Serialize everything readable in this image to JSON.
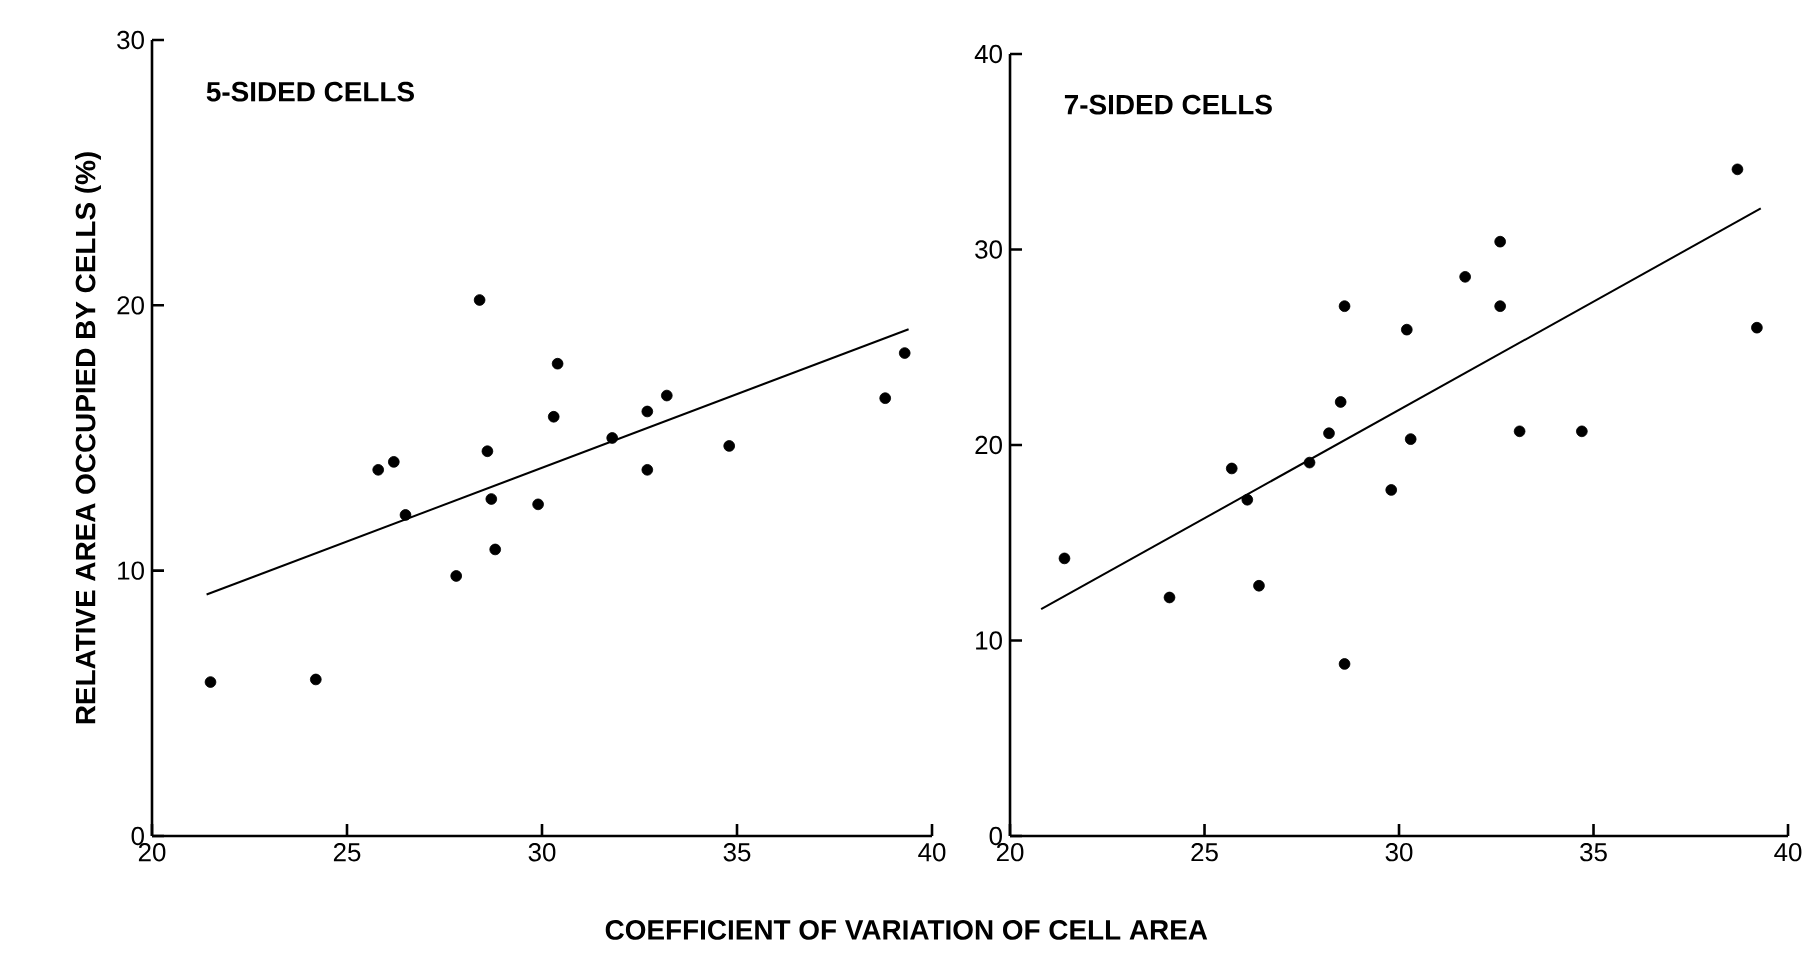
{
  "chart_data": [
    {
      "type": "scatter",
      "title": "5-SIDED CELLS",
      "xlabel": "COEFFICIENT OF VARIATION OF CELL AREA",
      "ylabel": "RELATIVE AREA OCCUPIED BY CELLS (%)",
      "xlim": [
        20,
        40
      ],
      "ylim": [
        0,
        30
      ],
      "xticks": [
        20,
        25,
        30,
        35,
        40
      ],
      "yticks": [
        0,
        10,
        20,
        30
      ],
      "marker": "circle",
      "series": [
        {
          "color": "#000000",
          "x": [
            21.5,
            24.2,
            25.8,
            26.2,
            26.5,
            27.8,
            28.4,
            28.6,
            28.7,
            28.8,
            29.9,
            30.3,
            30.4,
            31.8,
            32.7,
            32.7,
            33.2,
            34.8,
            38.8,
            39.3
          ],
          "values": [
            5.8,
            5.9,
            13.8,
            14.1,
            12.1,
            9.8,
            20.2,
            14.5,
            12.7,
            10.8,
            12.5,
            15.8,
            17.8,
            15.0,
            16.0,
            13.8,
            16.6,
            14.7,
            16.5,
            18.2
          ]
        },
        {
          "type": "line",
          "marker": "none",
          "color": "#000000",
          "x": [
            21.4,
            39.4
          ],
          "values": [
            9.1,
            19.1
          ]
        }
      ]
    },
    {
      "type": "scatter",
      "title": "7-SIDED CELLS",
      "xlim": [
        20,
        40
      ],
      "ylim": [
        0,
        40
      ],
      "xticks": [
        20,
        25,
        30,
        35,
        40
      ],
      "yticks": [
        0,
        10,
        20,
        30,
        40
      ],
      "marker": "circle",
      "series": [
        {
          "color": "#000000",
          "x": [
            21.4,
            24.1,
            25.7,
            26.1,
            26.4,
            27.7,
            28.2,
            28.5,
            28.6,
            28.6,
            29.8,
            30.2,
            30.3,
            31.7,
            32.6,
            32.6,
            33.1,
            34.7,
            38.7,
            39.2
          ],
          "values": [
            14.2,
            12.2,
            18.8,
            17.2,
            12.8,
            19.1,
            20.6,
            22.2,
            27.1,
            8.8,
            17.7,
            25.9,
            20.3,
            28.6,
            30.4,
            27.1,
            20.7,
            20.7,
            34.1,
            26.0
          ]
        },
        {
          "type": "line",
          "marker": "none",
          "color": "#000000",
          "x": [
            20.8,
            39.3
          ],
          "values": [
            11.6,
            32.1
          ]
        }
      ]
    }
  ]
}
